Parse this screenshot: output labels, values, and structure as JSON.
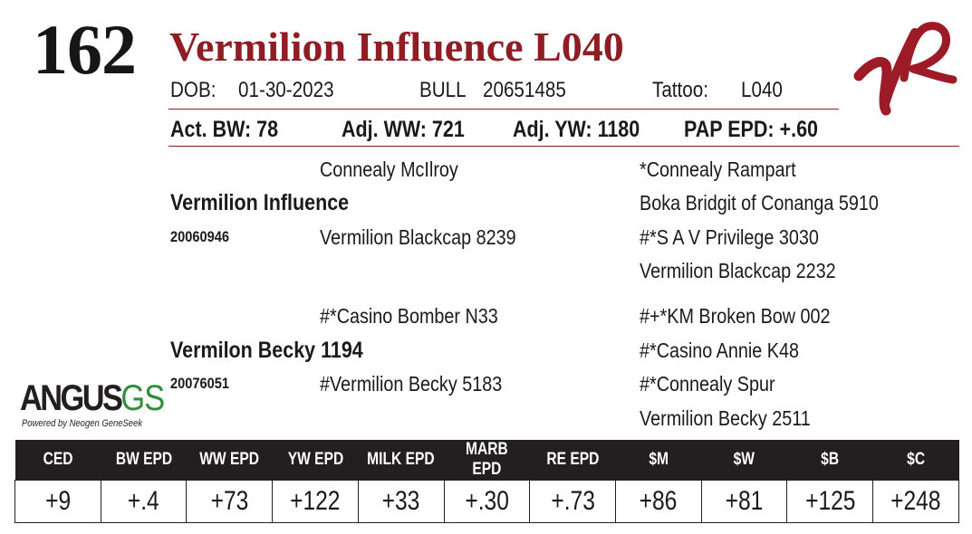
{
  "lot": {
    "number": "162",
    "name": "Vermilion Influence L040"
  },
  "info": {
    "dob_label": "DOB:",
    "dob": "01-30-2023",
    "sex": "BULL",
    "reg": "20651485",
    "tattoo_label": "Tattoo:",
    "tattoo": "L040",
    "act_bw": "Act. BW: 78",
    "adj_ww": "Adj. WW: 721",
    "adj_yw": "Adj. YW: 1180",
    "pap_epd": "PAP EPD: +.60"
  },
  "pedigree": {
    "sire": {
      "name": "Vermilion Influence",
      "reg": "20060946"
    },
    "sire_sire": "Connealy McIlroy",
    "sire_dam": "Vermilion Blackcap 8239",
    "sire_sire_sire": "*Connealy Rampart",
    "sire_sire_dam": "Boka Bridgit of Conanga 5910",
    "sire_dam_sire": "#*S A V Privilege 3030",
    "sire_dam_dam": "Vermilion Blackcap 2232",
    "dam": {
      "name": "Vermilon Becky 1194",
      "reg": "20076051"
    },
    "dam_sire": "#*Casino Bomber N33",
    "dam_dam": "#Vermilion Becky 5183",
    "dam_sire_sire": "#+*KM Broken Bow 002",
    "dam_sire_dam": "#*Casino Annie K48",
    "dam_dam_sire": "#*Connealy Spur",
    "dam_dam_dam": "Vermilion Becky 2511"
  },
  "logo": {
    "word": "ANGUS",
    "suffix": "GS",
    "tagline": "Powered by Neogen GeneSeek"
  },
  "epd": {
    "headers": [
      "CED",
      "BW EPD",
      "WW EPD",
      "YW EPD",
      "MILK EPD",
      "MARB EPD",
      "RE EPD",
      "$M",
      "$W",
      "$B",
      "$C"
    ],
    "values": [
      "+9",
      "+.4",
      "+73",
      "+122",
      "+33",
      "+.30",
      "+.73",
      "+86",
      "+81",
      "+125",
      "+248"
    ]
  },
  "colors": {
    "accent": "#8f1d24",
    "header_bg": "#231f20",
    "logo_green": "#2f8f3c"
  },
  "icons": {
    "brand": "vr-brand-mark-icon"
  }
}
